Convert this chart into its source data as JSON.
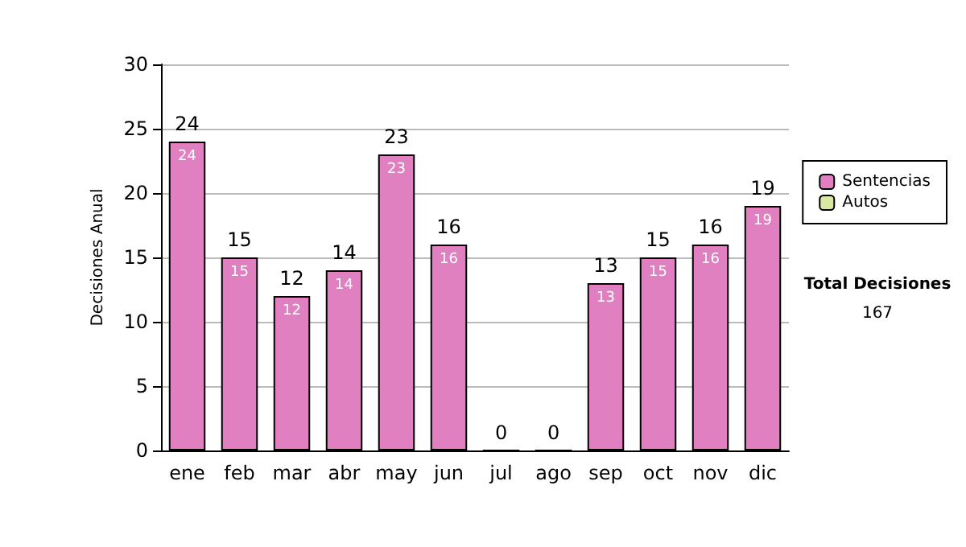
{
  "chart_data": {
    "type": "bar",
    "stacked": true,
    "ylabel": "Decisiones Anual",
    "categories": [
      "ene",
      "feb",
      "mar",
      "abr",
      "may",
      "jun",
      "jul",
      "ago",
      "sep",
      "oct",
      "nov",
      "dic"
    ],
    "series": [
      {
        "name": "Sentencias",
        "color": "#e080c0",
        "values": [
          24,
          15,
          12,
          14,
          23,
          16,
          0,
          0,
          13,
          15,
          16,
          19
        ],
        "value_labels": [
          "24",
          "15",
          "12",
          "14",
          "23",
          "16",
          null,
          null,
          "13",
          "15",
          "16",
          "19"
        ]
      },
      {
        "name": "Autos",
        "color": "#d8e8a0",
        "values": [
          0,
          0,
          0,
          0,
          0,
          0,
          0,
          0,
          0,
          0,
          0,
          0
        ]
      }
    ],
    "totals": [
      "24",
      "15",
      "12",
      "14",
      "23",
      "16",
      "0",
      "0",
      "13",
      "15",
      "16",
      "19"
    ],
    "ylim": [
      0,
      30
    ],
    "yticks": [
      0,
      5,
      10,
      15,
      20,
      25,
      30
    ],
    "grid": "y",
    "legend": "right",
    "annotations": [
      "Total Decisiones",
      "167"
    ]
  }
}
